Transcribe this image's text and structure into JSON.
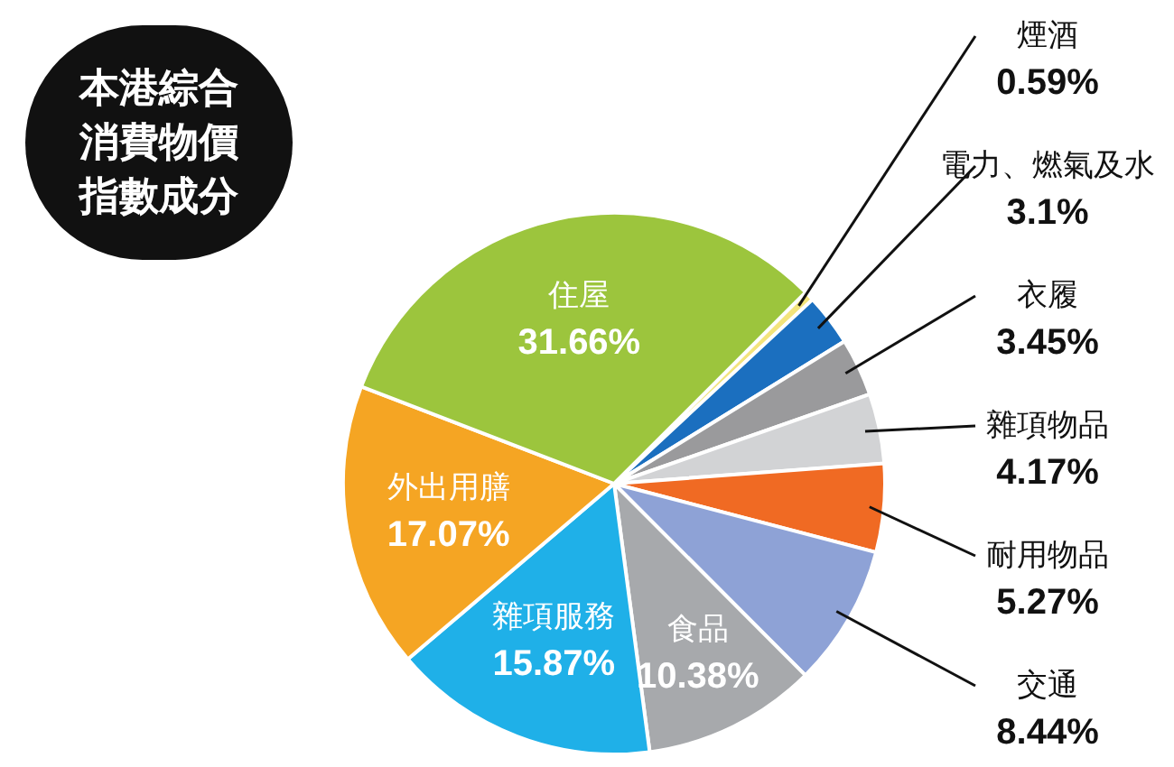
{
  "chart_data": {
    "type": "pie",
    "title": "本港綜合消費物價指數成分",
    "categories": [
      "煙酒",
      "電力、燃氣及水",
      "衣履",
      "雜項物品",
      "耐用物品",
      "交通",
      "食品",
      "雜項服務",
      "外出用膳",
      "住屋"
    ],
    "values": [
      0.59,
      3.1,
      3.45,
      4.17,
      5.27,
      8.44,
      10.38,
      15.87,
      17.07,
      31.66
    ],
    "value_labels": [
      "0.59%",
      "3.1%",
      "3.45%",
      "4.17%",
      "5.27%",
      "8.44%",
      "10.38%",
      "15.87%",
      "17.07%",
      "31.66%"
    ],
    "colors": [
      "#f3e47c",
      "#1b6fbf",
      "#9a9a9c",
      "#d2d3d5",
      "#f06a23",
      "#8ea2d6",
      "#a7a9ac",
      "#1fb0e8",
      "#f5a523",
      "#9cc53d"
    ],
    "legend": false
  }
}
